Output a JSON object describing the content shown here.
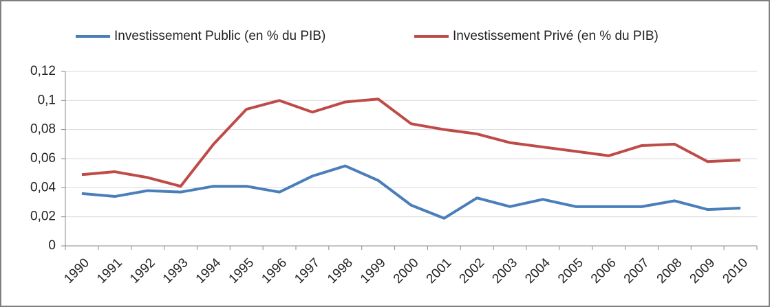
{
  "chart_data": {
    "type": "line",
    "categories": [
      "1990",
      "1991",
      "1992",
      "1993",
      "1994",
      "1995",
      "1996",
      "1997",
      "1998",
      "1999",
      "2000",
      "2001",
      "2002",
      "2003",
      "2004",
      "2005",
      "2006",
      "2007",
      "2008",
      "2009",
      "2010"
    ],
    "series": [
      {
        "name": "Investissement Public (en % du PIB)",
        "color": "#4a7ebb",
        "values": [
          0.036,
          0.034,
          0.038,
          0.037,
          0.041,
          0.041,
          0.037,
          0.048,
          0.055,
          0.045,
          0.028,
          0.019,
          0.033,
          0.027,
          0.032,
          0.027,
          0.027,
          0.027,
          0.031,
          0.025,
          0.026
        ]
      },
      {
        "name": "Investissement Privé (en % du PIB)",
        "color": "#be4b48",
        "values": [
          0.049,
          0.051,
          0.047,
          0.041,
          0.07,
          0.094,
          0.1,
          0.092,
          0.099,
          0.101,
          0.084,
          0.08,
          0.077,
          0.071,
          0.068,
          0.065,
          0.062,
          0.069,
          0.07,
          0.058,
          0.059
        ]
      }
    ],
    "ylim": [
      0,
      0.12
    ],
    "yticks": [
      0,
      {
        "value": 0.02,
        "label": "0,02"
      },
      {
        "value": 0.04,
        "label": "0,04"
      },
      {
        "value": 0.06,
        "label": "0,06"
      },
      {
        "value": 0.08,
        "label": "0,08"
      },
      {
        "value": 0.1,
        "label": "0,1"
      },
      {
        "value": 0.12,
        "label": "0,12"
      }
    ],
    "grid": true,
    "legend": "top"
  }
}
